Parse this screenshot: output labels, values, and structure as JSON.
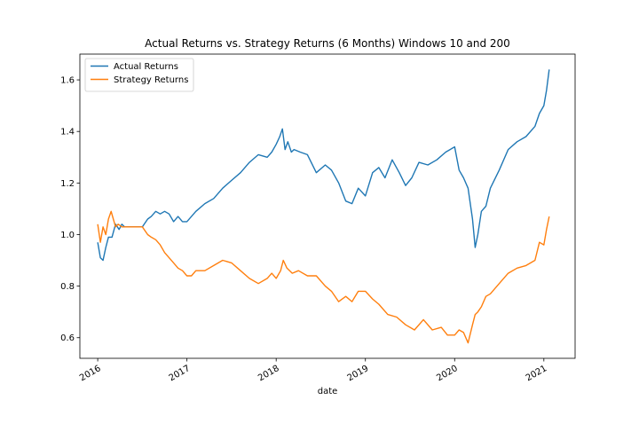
{
  "chart_data": {
    "type": "line",
    "title": "Actual Returns vs. Strategy Returns (6 Months) Windows 10 and 200",
    "xlabel": "date",
    "ylabel": "",
    "xlim": [
      2015.8,
      2021.35
    ],
    "ylim": [
      0.52,
      1.7
    ],
    "x_ticks": [
      2016,
      2017,
      2018,
      2019,
      2020,
      2021
    ],
    "x_tick_labels": [
      "2016",
      "2017",
      "2018",
      "2019",
      "2020",
      "2021"
    ],
    "y_ticks": [
      0.6,
      0.8,
      1.0,
      1.2,
      1.4,
      1.6
    ],
    "y_tick_labels": [
      "0.6",
      "0.8",
      "1.0",
      "1.2",
      "1.4",
      "1.6"
    ],
    "grid": false,
    "legend": {
      "placement": "top-left",
      "entries": [
        "Actual Returns",
        "Strategy Returns"
      ]
    },
    "series": [
      {
        "name": "Actual Returns",
        "color": "#1f77b4",
        "x": [
          2016.0,
          2016.03,
          2016.06,
          2016.09,
          2016.12,
          2016.16,
          2016.2,
          2016.24,
          2016.27,
          2016.3,
          2016.5,
          2016.56,
          2016.6,
          2016.65,
          2016.7,
          2016.75,
          2016.8,
          2016.85,
          2016.9,
          2016.95,
          2017.0,
          2017.05,
          2017.1,
          2017.2,
          2017.3,
          2017.4,
          2017.5,
          2017.6,
          2017.7,
          2017.8,
          2017.9,
          2017.95,
          2018.0,
          2018.04,
          2018.07,
          2018.1,
          2018.13,
          2018.17,
          2018.2,
          2018.27,
          2018.35,
          2018.45,
          2018.55,
          2018.62,
          2018.7,
          2018.78,
          2018.85,
          2018.92,
          2019.0,
          2019.08,
          2019.15,
          2019.22,
          2019.3,
          2019.38,
          2019.45,
          2019.52,
          2019.6,
          2019.7,
          2019.8,
          2019.9,
          2020.0,
          2020.05,
          2020.1,
          2020.15,
          2020.2,
          2020.23,
          2020.26,
          2020.3,
          2020.35,
          2020.4,
          2020.5,
          2020.6,
          2020.7,
          2020.8,
          2020.9,
          2020.95,
          2021.0,
          2021.03,
          2021.06
        ],
        "values": [
          0.97,
          0.91,
          0.9,
          0.95,
          0.99,
          0.99,
          1.04,
          1.02,
          1.04,
          1.03,
          1.03,
          1.06,
          1.07,
          1.09,
          1.08,
          1.09,
          1.08,
          1.05,
          1.07,
          1.05,
          1.05,
          1.07,
          1.09,
          1.12,
          1.14,
          1.18,
          1.21,
          1.24,
          1.28,
          1.31,
          1.3,
          1.32,
          1.35,
          1.38,
          1.41,
          1.33,
          1.36,
          1.32,
          1.33,
          1.32,
          1.31,
          1.24,
          1.27,
          1.25,
          1.2,
          1.13,
          1.12,
          1.18,
          1.15,
          1.24,
          1.26,
          1.22,
          1.29,
          1.24,
          1.19,
          1.22,
          1.28,
          1.27,
          1.29,
          1.32,
          1.34,
          1.25,
          1.22,
          1.18,
          1.06,
          0.95,
          1.0,
          1.09,
          1.11,
          1.18,
          1.25,
          1.33,
          1.36,
          1.38,
          1.42,
          1.47,
          1.5,
          1.56,
          1.64
        ]
      },
      {
        "name": "Strategy Returns",
        "color": "#ff7f0e",
        "x": [
          2016.0,
          2016.03,
          2016.06,
          2016.09,
          2016.12,
          2016.15,
          2016.2,
          2016.23,
          2016.27,
          2016.3,
          2016.5,
          2016.56,
          2016.6,
          2016.65,
          2016.7,
          2016.75,
          2016.8,
          2016.85,
          2016.9,
          2016.95,
          2017.0,
          2017.05,
          2017.1,
          2017.2,
          2017.3,
          2017.4,
          2017.5,
          2017.6,
          2017.7,
          2017.8,
          2017.9,
          2017.95,
          2018.0,
          2018.05,
          2018.08,
          2018.12,
          2018.18,
          2018.25,
          2018.35,
          2018.45,
          2018.55,
          2018.62,
          2018.7,
          2018.78,
          2018.85,
          2018.92,
          2019.0,
          2019.08,
          2019.15,
          2019.25,
          2019.35,
          2019.45,
          2019.55,
          2019.65,
          2019.75,
          2019.85,
          2019.92,
          2020.0,
          2020.05,
          2020.1,
          2020.15,
          2020.2,
          2020.23,
          2020.26,
          2020.3,
          2020.35,
          2020.4,
          2020.5,
          2020.6,
          2020.7,
          2020.8,
          2020.9,
          2020.95,
          2021.0,
          2021.03,
          2021.06
        ],
        "values": [
          1.04,
          0.97,
          1.03,
          1.0,
          1.06,
          1.09,
          1.03,
          1.04,
          1.03,
          1.03,
          1.03,
          1.0,
          0.99,
          0.98,
          0.96,
          0.93,
          0.91,
          0.89,
          0.87,
          0.86,
          0.84,
          0.84,
          0.86,
          0.86,
          0.88,
          0.9,
          0.89,
          0.86,
          0.83,
          0.81,
          0.83,
          0.85,
          0.83,
          0.86,
          0.9,
          0.87,
          0.85,
          0.86,
          0.84,
          0.84,
          0.8,
          0.78,
          0.74,
          0.76,
          0.74,
          0.78,
          0.78,
          0.75,
          0.73,
          0.69,
          0.68,
          0.65,
          0.63,
          0.67,
          0.63,
          0.64,
          0.61,
          0.61,
          0.63,
          0.62,
          0.58,
          0.65,
          0.69,
          0.7,
          0.72,
          0.76,
          0.77,
          0.81,
          0.85,
          0.87,
          0.88,
          0.9,
          0.97,
          0.96,
          1.02,
          1.07
        ]
      }
    ]
  }
}
